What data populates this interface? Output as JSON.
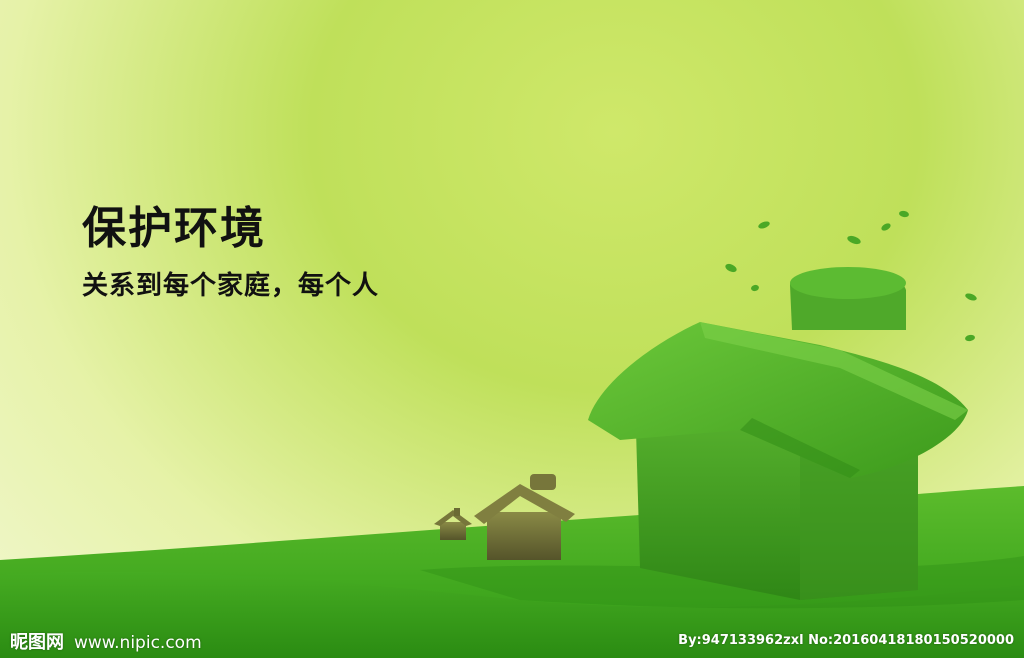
{
  "headline": "保护环境",
  "subheadline": "关系到每个家庭，每个人",
  "watermark": {
    "site_name": "昵图网",
    "url": "www.nipic.com",
    "credit": "By:947133962zxl No:20160418180150520000"
  },
  "colors": {
    "sky_top": "#bfe05a",
    "sky_bottom": "#f1f7cf",
    "grass": "#3fa81f",
    "grass_dark": "#2c8a14",
    "house_grass": "#4aa826",
    "small_house": "#6b6a34",
    "text": "#111111"
  },
  "icons": [
    "grass-house-large",
    "grass-house-medium",
    "grass-house-small",
    "leaf"
  ]
}
